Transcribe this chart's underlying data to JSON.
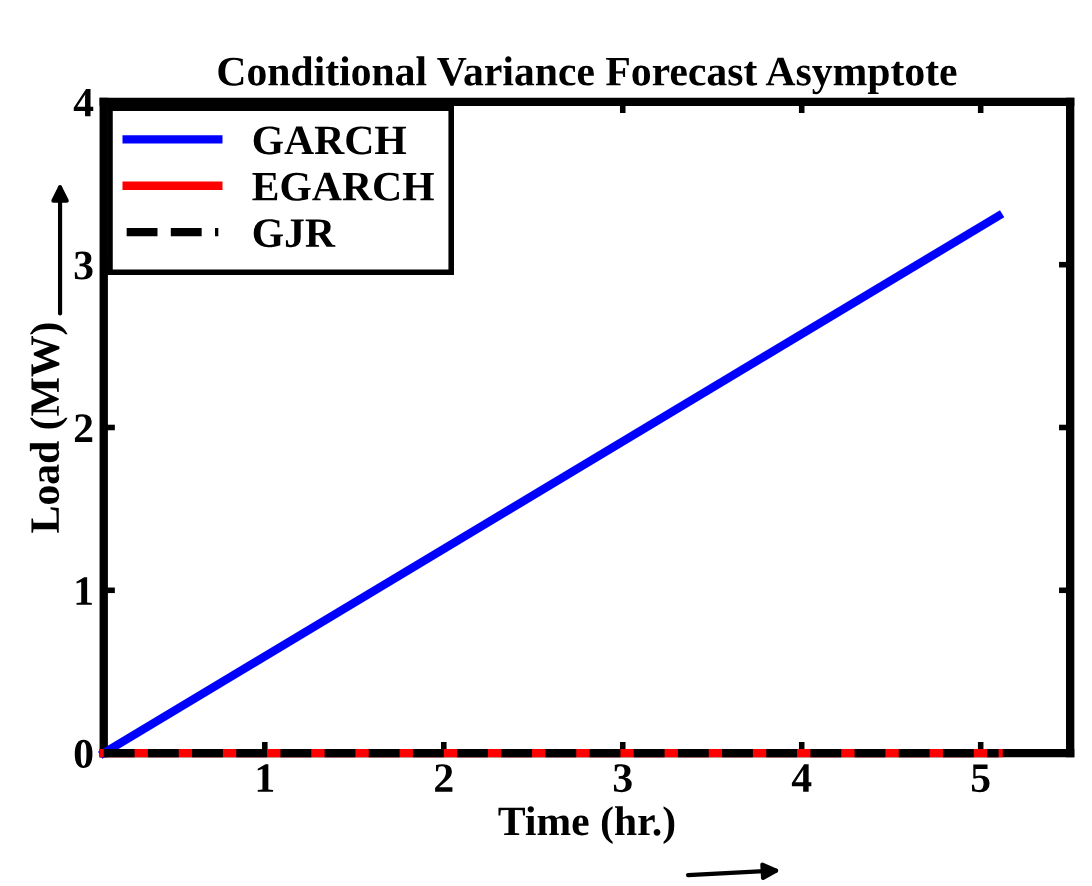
{
  "chart_data": {
    "type": "line",
    "title": "Conditional Variance Forecast Asymptote",
    "xlabel": "Time (hr.)",
    "ylabel": "Load (MW)",
    "x": [
      0.1,
      5.1
    ],
    "series": [
      {
        "name": "GARCH",
        "color": "#0000ff",
        "values": [
          0,
          3.3
        ]
      },
      {
        "name": "EGARCH",
        "color": "#ff0000",
        "values": [
          0,
          0
        ]
      },
      {
        "name": "GJR",
        "color": "#000000",
        "values": [
          0,
          0
        ],
        "line_style": "dashed"
      }
    ],
    "xlim": [
      0.1,
      5.5
    ],
    "xticks": [
      1,
      2,
      3,
      4,
      5
    ],
    "ylim": [
      0,
      4
    ],
    "yticks": [
      0,
      1,
      2,
      3,
      4
    ],
    "grid": false,
    "legend": "top left"
  }
}
